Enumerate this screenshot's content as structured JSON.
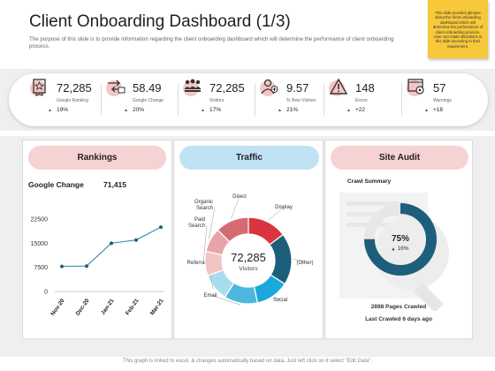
{
  "header": {
    "title": "Client Onboarding Dashboard (1/3)",
    "subtitle": "The purpose of this slide is to provide information regarding the client onboarding dashboard which will determine the performance of client onboarding process."
  },
  "sticky_note": {
    "text": "This slide provides glimpse about the client onboarding dashboard which will determine the performance of client onboarding process. User can made alterations in this slide according to their requirement."
  },
  "kpis": [
    {
      "icon": "ranking-badge-icon",
      "value": "72,285",
      "label": "Google Ranking",
      "change": "19%"
    },
    {
      "icon": "change-arrows-icon",
      "value": "58.49",
      "label": "Google Change",
      "change": "20%"
    },
    {
      "icon": "visitors-group-icon",
      "value": "72,285",
      "label": "Visitors",
      "change": "17%"
    },
    {
      "icon": "new-visitor-icon",
      "value": "9.57",
      "label": "% New Visitors",
      "change": "21%"
    },
    {
      "icon": "warning-icon",
      "value": "148",
      "label": "Errors",
      "change": "+22"
    },
    {
      "icon": "settings-window-icon",
      "value": "57",
      "label": "Warnings",
      "change": "+18"
    }
  ],
  "colors": {
    "rankings_header": "#f5d3d3",
    "traffic_header": "#bfe3f4",
    "site_audit_header": "#f5d3d3",
    "line": "#3f8fb0",
    "donut_dark": "#1d5f7a",
    "donut_red": "#d9343f"
  },
  "rankings": {
    "header": "Rankings",
    "google_change_label": "Google Change",
    "google_change_value": "71,415",
    "chart_data": {
      "type": "line",
      "categories": [
        "Nov-20",
        "Dec-20",
        "Jan-21",
        "Feb-21",
        "Mar-21"
      ],
      "values": [
        7800,
        7900,
        15000,
        16000,
        20000
      ],
      "yticks": [
        "0",
        "7500",
        "15000",
        "22500"
      ],
      "ylim": [
        0,
        22500
      ]
    }
  },
  "traffic": {
    "header": "Traffic",
    "center_value": "72,285",
    "center_label": "Visitors",
    "chart_data": {
      "type": "pie",
      "labels": [
        "Display",
        "(Other)",
        "Social",
        "Email",
        "Referral",
        "Paid Search",
        "Organic Search",
        "Direct"
      ],
      "values": [
        13,
        17,
        11,
        11,
        9,
        8,
        8,
        11
      ],
      "colors": [
        "#d9343f",
        "#1d5f7a",
        "#1ba9dc",
        "#4cb8e0",
        "#a9dcf0",
        "#f3c3c3",
        "#e8a4a7",
        "#d56b72"
      ]
    }
  },
  "site_audit": {
    "header": "Site Audit",
    "crawl_summary_label": "Crawl Summary",
    "percent_main": "75%",
    "percent_sub": "16%",
    "progress": 0.75,
    "pages_crawled": "2898 Pages Crawled",
    "last_crawled": "Last Crawled 6 days ago"
  },
  "footer": {
    "note": "This graph is linked to excel, & changes automatically based on data. Just left click on it select \"Edit Data\"."
  }
}
